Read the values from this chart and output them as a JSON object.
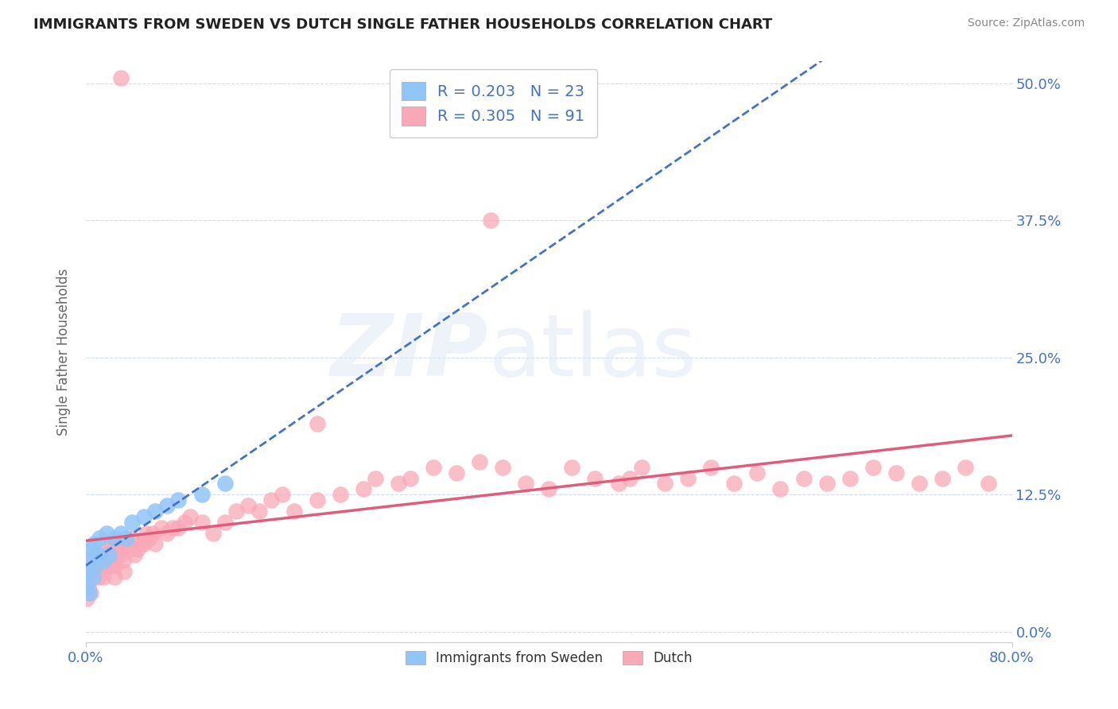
{
  "title": "IMMIGRANTS FROM SWEDEN VS DUTCH SINGLE FATHER HOUSEHOLDS CORRELATION CHART",
  "source": "Source: ZipAtlas.com",
  "ylabel": "Single Father Households",
  "yticks": [
    "0.0%",
    "12.5%",
    "25.0%",
    "37.5%",
    "50.0%"
  ],
  "ytick_vals": [
    0.0,
    12.5,
    25.0,
    37.5,
    50.0
  ],
  "xlim": [
    0.0,
    80.0
  ],
  "ylim": [
    -1.0,
    52.0
  ],
  "legend_entry1": "R = 0.203   N = 23",
  "legend_entry2": "R = 0.305   N = 91",
  "color_sweden": "#92C5F7",
  "color_dutch": "#F9A8B8",
  "color_text_blue": "#4472c4",
  "color_trend_sweden": "#4472c4",
  "color_trend_dutch": "#E05C7A",
  "background_color": "#ffffff",
  "sweden_x": [
    0.1,
    0.2,
    0.3,
    0.4,
    0.5,
    0.6,
    0.7,
    0.8,
    1.0,
    1.2,
    1.5,
    1.8,
    2.0,
    2.5,
    3.0,
    3.5,
    4.0,
    5.0,
    6.0,
    7.0,
    8.0,
    10.0,
    12.0
  ],
  "sweden_y": [
    4.0,
    5.5,
    3.5,
    6.5,
    7.5,
    5.0,
    8.0,
    6.0,
    7.0,
    8.5,
    6.5,
    9.0,
    7.0,
    8.5,
    9.0,
    8.5,
    10.0,
    10.5,
    11.0,
    11.5,
    12.0,
    12.5,
    13.5
  ],
  "dutch_x": [
    0.1,
    0.2,
    0.3,
    0.5,
    0.6,
    0.8,
    0.9,
    1.0,
    1.1,
    1.2,
    1.3,
    1.5,
    1.6,
    1.8,
    2.0,
    2.1,
    2.2,
    2.3,
    2.5,
    2.6,
    2.8,
    3.0,
    3.1,
    3.2,
    3.3,
    3.5,
    3.7,
    4.0,
    4.2,
    4.5,
    4.8,
    5.0,
    5.2,
    5.5,
    5.8,
    6.0,
    6.5,
    7.0,
    7.5,
    8.0,
    8.5,
    9.0,
    10.0,
    11.0,
    12.0,
    13.0,
    14.0,
    15.0,
    16.0,
    17.0,
    18.0,
    20.0,
    22.0,
    24.0,
    25.0,
    27.0,
    28.0,
    30.0,
    32.0,
    34.0,
    36.0,
    38.0,
    40.0,
    42.0,
    44.0,
    46.0,
    47.0,
    48.0,
    50.0,
    52.0,
    54.0,
    56.0,
    58.0,
    60.0,
    62.0,
    64.0,
    66.0,
    68.0,
    70.0,
    72.0,
    74.0,
    76.0,
    78.0,
    3.0,
    35.0,
    20.0,
    2.5,
    1.5,
    0.7,
    0.4,
    0.2
  ],
  "dutch_y": [
    3.0,
    4.0,
    5.0,
    6.0,
    7.0,
    5.5,
    6.0,
    6.5,
    5.0,
    7.0,
    6.0,
    5.0,
    6.5,
    7.5,
    6.0,
    7.0,
    8.0,
    6.5,
    6.0,
    7.0,
    8.0,
    7.0,
    8.0,
    6.5,
    5.5,
    8.0,
    7.5,
    8.5,
    7.0,
    7.5,
    8.0,
    8.0,
    9.0,
    8.5,
    9.0,
    8.0,
    9.5,
    9.0,
    9.5,
    9.5,
    10.0,
    10.5,
    10.0,
    9.0,
    10.0,
    11.0,
    11.5,
    11.0,
    12.0,
    12.5,
    11.0,
    12.0,
    12.5,
    13.0,
    14.0,
    13.5,
    14.0,
    15.0,
    14.5,
    15.5,
    15.0,
    13.5,
    13.0,
    15.0,
    14.0,
    13.5,
    14.0,
    15.0,
    13.5,
    14.0,
    15.0,
    13.5,
    14.5,
    13.0,
    14.0,
    13.5,
    14.0,
    15.0,
    14.5,
    13.5,
    14.0,
    15.0,
    13.5,
    50.5,
    37.5,
    19.0,
    5.0,
    6.0,
    5.5,
    3.5,
    4.0
  ]
}
